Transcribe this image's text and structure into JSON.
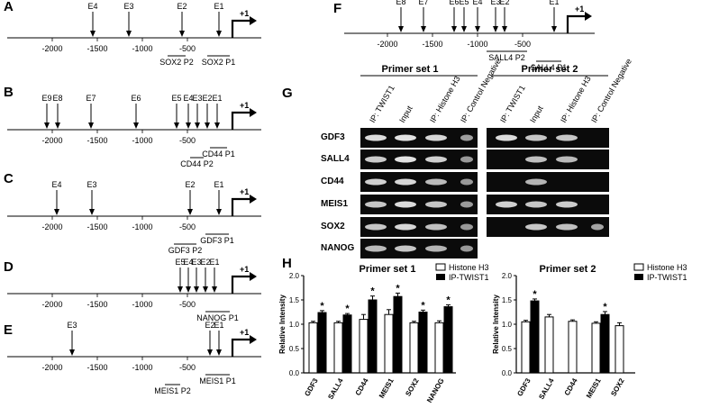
{
  "panels": [
    {
      "id": "A",
      "label": "A",
      "elements": [
        {
          "label": "E4",
          "x": -1550
        },
        {
          "label": "E3",
          "x": -1150
        },
        {
          "label": "E2",
          "x": -560
        },
        {
          "label": "E1",
          "x": -150
        }
      ],
      "primers": [
        {
          "label": "SOX2 P2",
          "from": -720,
          "to": -520,
          "lvl": 0
        },
        {
          "label": "SOX2 P1",
          "from": -280,
          "to": -30,
          "lvl": 0
        }
      ],
      "ticks": [
        -2000,
        -1500,
        -1000,
        -500
      ]
    },
    {
      "id": "B",
      "label": "B",
      "elements": [
        {
          "label": "E9",
          "x": -2060
        },
        {
          "label": "E8",
          "x": -1940
        },
        {
          "label": "E7",
          "x": -1570
        },
        {
          "label": "E6",
          "x": -1070
        },
        {
          "label": "E5",
          "x": -620
        },
        {
          "label": "E4",
          "x": -490
        },
        {
          "label": "E3",
          "x": -390
        },
        {
          "label": "E2",
          "x": -280
        },
        {
          "label": "E1",
          "x": -170
        }
      ],
      "primers": [
        {
          "label": "CD44 P1",
          "from": -250,
          "to": -60,
          "lvl": 0
        },
        {
          "label": "CD44 P2",
          "from": -470,
          "to": -320,
          "lvl": 1
        }
      ],
      "ticks": [
        -2000,
        -1500,
        -1000,
        -500
      ]
    },
    {
      "id": "C",
      "label": "C",
      "elements": [
        {
          "label": "E4",
          "x": -1950
        },
        {
          "label": "E3",
          "x": -1560
        },
        {
          "label": "E2",
          "x": -470
        },
        {
          "label": "E1",
          "x": -150
        }
      ],
      "primers": [
        {
          "label": "GDF3 P1",
          "from": -300,
          "to": -40,
          "lvl": 0
        },
        {
          "label": "GDF3 P2",
          "from": -650,
          "to": -400,
          "lvl": 1
        }
      ],
      "ticks": [
        -2000,
        -1500,
        -1000,
        -500
      ]
    },
    {
      "id": "D",
      "label": "D",
      "elements": [
        {
          "label": "E5",
          "x": -580
        },
        {
          "label": "E4",
          "x": -490
        },
        {
          "label": "E3",
          "x": -400
        },
        {
          "label": "E2",
          "x": -300
        },
        {
          "label": "E1",
          "x": -200
        }
      ],
      "primers": [
        {
          "label": "NANOG P1",
          "from": -300,
          "to": -30,
          "lvl": 0
        }
      ],
      "ticks": [
        -2000,
        -1500,
        -1000,
        -500
      ]
    },
    {
      "id": "E",
      "label": "E",
      "elements": [
        {
          "label": "E3",
          "x": -1780
        },
        {
          "label": "E2",
          "x": -250
        },
        {
          "label": "E1",
          "x": -150
        }
      ],
      "primers": [
        {
          "label": "MEIS1 P1",
          "from": -300,
          "to": -30,
          "lvl": 0
        },
        {
          "label": "MEIS1 P2",
          "from": -750,
          "to": -580,
          "lvl": 1
        }
      ],
      "ticks": [
        -2000,
        -1500,
        -1000,
        -500
      ]
    },
    {
      "id": "F",
      "label": "F",
      "elements": [
        {
          "label": "E8",
          "x": -1850
        },
        {
          "label": "E7",
          "x": -1600
        },
        {
          "label": "E6",
          "x": -1260
        },
        {
          "label": "E5",
          "x": -1150
        },
        {
          "label": "E4",
          "x": -1000
        },
        {
          "label": "E3",
          "x": -800
        },
        {
          "label": "E2",
          "x": -700
        },
        {
          "label": "E1",
          "x": -150
        }
      ],
      "primers": [
        {
          "label": "SALL4 P2",
          "from": -900,
          "to": -450,
          "lvl": 0
        },
        {
          "label": "SALL4 P1",
          "from": -350,
          "to": -70,
          "lvl": 1
        }
      ],
      "ticks": [
        -2000,
        -1500,
        -1000,
        -500
      ]
    }
  ],
  "tss_label": "+1",
  "gel": {
    "label": "G",
    "set1_title": "Primer set 1",
    "set2_title": "Primer set 2",
    "lanes": [
      "IP: TWIST1",
      "Input",
      "IP: Histone H3",
      "IP: Control Negative"
    ],
    "genes": [
      "GDF3",
      "SALL4",
      "CD44",
      "MEIS1",
      "SOX2",
      "NANOG"
    ],
    "set1_bands": [
      [
        0.9,
        0.95,
        0.85,
        0.35
      ],
      [
        0.75,
        0.95,
        0.8,
        0.3
      ],
      [
        0.8,
        0.85,
        0.6,
        0.3
      ],
      [
        0.7,
        0.9,
        0.7,
        0.3
      ],
      [
        0.7,
        0.85,
        0.65,
        0.3
      ],
      [
        0.6,
        0.7,
        0.55,
        0.3
      ]
    ],
    "set2_bands": [
      [
        0.9,
        0.7,
        0.7,
        0
      ],
      [
        0,
        0.65,
        0.6,
        0
      ],
      [
        0,
        0.55,
        0,
        0
      ],
      [
        0.8,
        0.7,
        0.75,
        0
      ],
      [
        0,
        0.7,
        0.65,
        0.4
      ]
    ]
  },
  "bars_label": "H",
  "chart_data": [
    {
      "type": "bar",
      "title": "Primer set 1",
      "ylabel": "Relative Intensity",
      "ylim": [
        0,
        2.0
      ],
      "yticks": [
        "0.0",
        "0.5",
        "1.0",
        "1.5",
        "2.0"
      ],
      "categories": [
        "GDF3",
        "SALL4",
        "CD44",
        "MEIS1",
        "SOX2",
        "NANOG"
      ],
      "series": [
        {
          "name": "Histone H3",
          "values": [
            1.03,
            1.03,
            1.1,
            1.2,
            1.03,
            1.03
          ],
          "errors": [
            0.03,
            0.03,
            0.1,
            0.1,
            0.03,
            0.04
          ],
          "color": "#ffffff"
        },
        {
          "name": "IP-TWIST1",
          "values": [
            1.24,
            1.19,
            1.5,
            1.57,
            1.25,
            1.36
          ],
          "errors": [
            0.04,
            0.03,
            0.08,
            0.07,
            0.04,
            0.04
          ],
          "color": "#000000"
        }
      ],
      "significant": [
        "GDF3",
        "SALL4",
        "CD44",
        "MEIS1",
        "SOX2",
        "NANOG"
      ]
    },
    {
      "type": "bar",
      "title": "Primer set 2",
      "ylabel": "Relative Intensity",
      "ylim": [
        0,
        2.0
      ],
      "yticks": [
        "0.0",
        "0.5",
        "1.0",
        "1.5",
        "2.0"
      ],
      "categories": [
        "GDF3",
        "SALL4",
        "CD44",
        "MEIS1",
        "SOX2"
      ],
      "series": [
        {
          "name": "Histone H3",
          "values": [
            1.05,
            1.15,
            1.06,
            1.02,
            0.97
          ],
          "errors": [
            0.03,
            0.05,
            0.03,
            0.03,
            0.06
          ],
          "color": "#ffffff"
        },
        {
          "name": "IP-TWIST1",
          "values": [
            1.48,
            null,
            null,
            1.2,
            null
          ],
          "errors": [
            0.04,
            0,
            0,
            0.06,
            0
          ],
          "color": "#000000"
        }
      ],
      "significant": [
        "GDF3",
        "MEIS1"
      ]
    }
  ],
  "legend": {
    "histone": "Histone H3",
    "twist": "IP-TWIST1"
  }
}
